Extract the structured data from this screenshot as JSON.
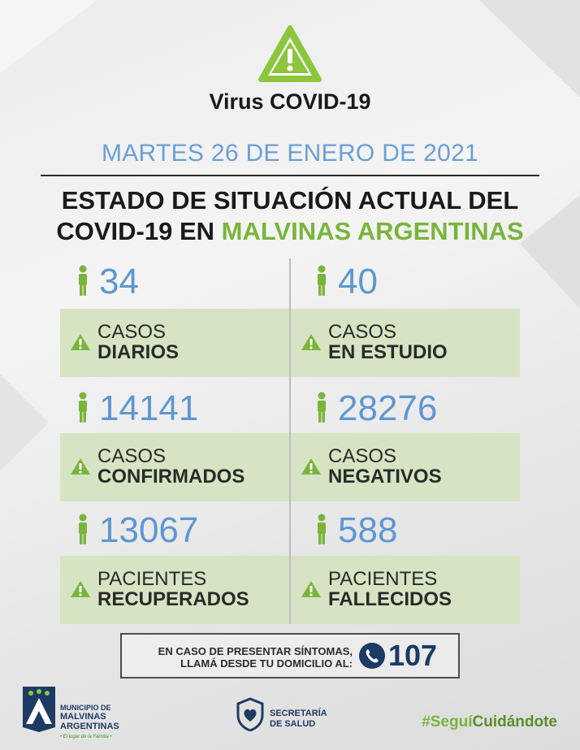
{
  "header": {
    "title": "Virus COVID-19",
    "date": "MARTES 26 DE ENERO DE 2021",
    "headline_line1": "ESTADO DE SITUACIÓN ACTUAL DEL",
    "headline_line2_prefix": "COVID-19 EN ",
    "headline_line2_highlight": "MALVINAS ARGENTINAS"
  },
  "stats": [
    {
      "value": "34",
      "label_top": "CASOS",
      "label_bottom": "DIARIOS"
    },
    {
      "value": "40",
      "label_top": "CASOS",
      "label_bottom": "EN ESTUDIO"
    },
    {
      "value": "14141",
      "label_top": "CASOS",
      "label_bottom": "CONFIRMADOS"
    },
    {
      "value": "28276",
      "label_top": "CASOS",
      "label_bottom": "NEGATIVOS"
    },
    {
      "value": "13067",
      "label_top": "PACIENTES",
      "label_bottom": "RECUPERADOS"
    },
    {
      "value": "588",
      "label_top": "PACIENTES",
      "label_bottom": "FALLECIDOS"
    }
  ],
  "cta": {
    "line1_pre": "EN CASO DE PRESENTAR ",
    "line1_bold": "SÍNTOMAS,",
    "line2": "LLAMÁ DESDE TU DOMICILIO AL:",
    "phone": "107"
  },
  "footer": {
    "muni_line1": "MUNICIPIO DE",
    "muni_line2": "MALVINAS",
    "muni_line3": "ARGENTINAS",
    "muni_tagline": "• El lugar de la Familia •",
    "salud_line1": "SECRETARÍA",
    "salud_line2": "DE SALUD",
    "hashtag_pre": "#Seguí",
    "hashtag_post": "Cuidándote"
  },
  "colors": {
    "accent_green": "#79b53b",
    "number_blue": "#5d97d2",
    "date_blue": "#6b9fd6",
    "band_green": "#d6e4c3",
    "navy": "#1b3a64"
  },
  "icons": [
    "warning-triangle-icon",
    "person-icon",
    "phone-icon"
  ]
}
